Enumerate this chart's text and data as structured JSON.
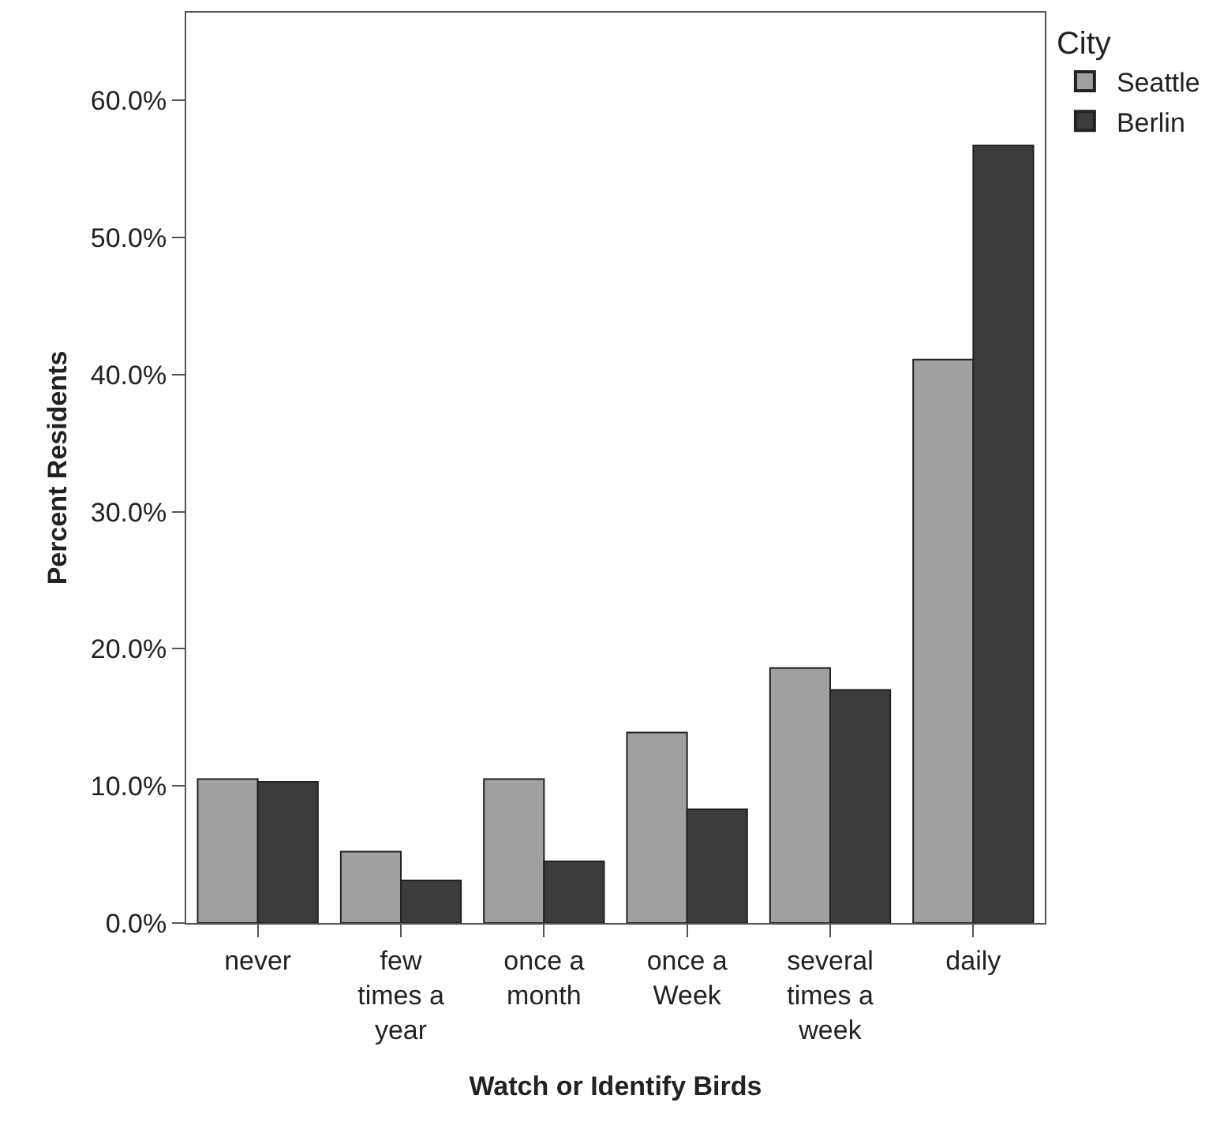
{
  "chart_data": {
    "type": "bar",
    "xlabel": "Watch or Identify Birds",
    "ylabel": "Percent Residents",
    "legend_title": "City",
    "categories": [
      "never",
      "few times a year",
      "once a month",
      "once a Week",
      "several times a week",
      "daily"
    ],
    "series": [
      {
        "name": "Seattle",
        "color": "#a0a0a0",
        "values": [
          10.5,
          5.2,
          10.5,
          13.9,
          18.6,
          41.1
        ]
      },
      {
        "name": "Berlin",
        "color": "#3c3c3c",
        "values": [
          10.3,
          3.1,
          4.5,
          8.3,
          17.0,
          56.7
        ]
      }
    ],
    "ylim": [
      0,
      66.4
    ],
    "yticks": [
      {
        "value": 0,
        "label": "0.0%"
      },
      {
        "value": 10,
        "label": "10.0%"
      },
      {
        "value": 20,
        "label": "20.0%"
      },
      {
        "value": 30,
        "label": "30.0%"
      },
      {
        "value": 40,
        "label": "40.0%"
      },
      {
        "value": 50,
        "label": "50.0%"
      },
      {
        "value": 60,
        "label": "60.0%"
      }
    ],
    "legend": "top right"
  }
}
